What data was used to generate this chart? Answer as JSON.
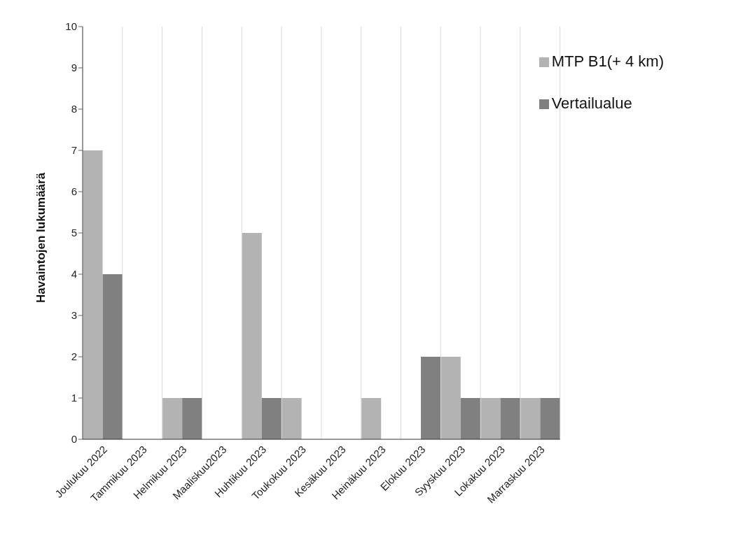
{
  "chart_data": {
    "type": "bar",
    "ylabel": "Havaintojen lukumäärä",
    "categories": [
      "Joulukuu 2022",
      "Tammikuu 2023",
      "Helmikuu 2023",
      "Maaliskuu2023",
      "Huhtikuu 2023",
      "Toukokuu 2023",
      "Kesäkuu 2023",
      "Heinäkuu 2023",
      "Elokuu 2023",
      "Syyskuu 2023",
      "Lokakuu 2023",
      "Marraskuu 2023"
    ],
    "series": [
      {
        "name": "MTP B1(+ 4 km)",
        "color": "#b3b3b3",
        "values": [
          7,
          0,
          1,
          0,
          5,
          1,
          0,
          1,
          0,
          2,
          1,
          1
        ]
      },
      {
        "name": "Vertailualue",
        "color": "#808080",
        "values": [
          4,
          0,
          1,
          0,
          1,
          0,
          0,
          0,
          2,
          1,
          1,
          1
        ]
      }
    ],
    "ylim": [
      0,
      10
    ],
    "yticks": [
      0,
      1,
      2,
      3,
      4,
      5,
      6,
      7,
      8,
      9,
      10
    ],
    "grid": "x",
    "legend": "top right"
  }
}
